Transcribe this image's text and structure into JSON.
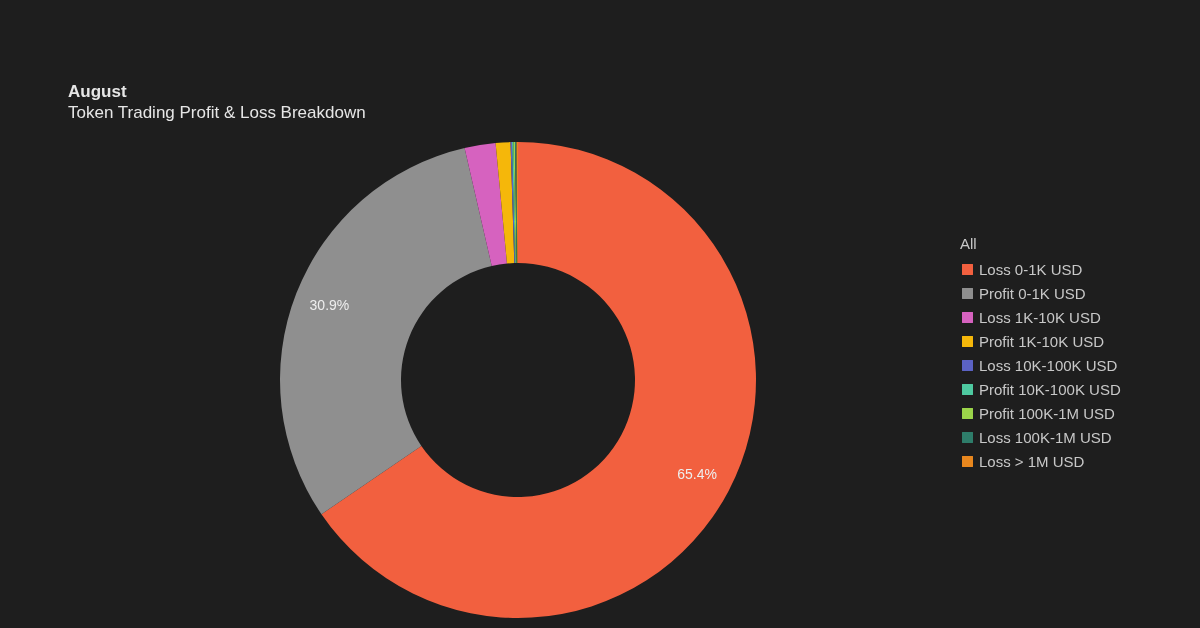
{
  "chart_data": {
    "type": "donut",
    "title": "August",
    "subtitle": "Token Trading Profit & Loss Breakdown",
    "legend_title": "All",
    "categories": [
      "Loss 0-1K USD",
      "Profit 0-1K USD",
      "Loss 1K-10K USD",
      "Profit 1K-10K USD",
      "Loss 10K-100K USD",
      "Profit 10K-100K USD",
      "Profit 100K-1M USD",
      "Loss 100K-1M USD",
      "Loss > 1M USD"
    ],
    "values": [
      65.4,
      30.9,
      2.1,
      1.0,
      0.1,
      0.1,
      0.1,
      0.1,
      0.1
    ],
    "colors": [
      "#f2603f",
      "#8f8f8f",
      "#d662bf",
      "#f5b70a",
      "#5b62c4",
      "#4ec9a0",
      "#9bd44a",
      "#2e7d6a",
      "#e8871e"
    ],
    "value_labels": [
      "65.4%",
      "30.9%",
      null,
      null,
      null,
      null,
      null,
      null,
      null
    ],
    "legend": "right"
  }
}
